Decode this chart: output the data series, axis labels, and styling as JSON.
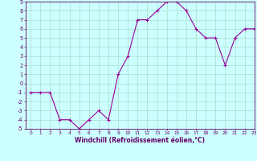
{
  "xlabel": "Windchill (Refroidissement éolien,°C)",
  "x": [
    0,
    1,
    2,
    3,
    4,
    5,
    6,
    7,
    8,
    9,
    10,
    11,
    12,
    13,
    14,
    15,
    16,
    17,
    18,
    19,
    20,
    21,
    22,
    23
  ],
  "y": [
    -1,
    -1,
    -1,
    -4,
    -4,
    -5,
    -4,
    -3,
    -4,
    1,
    3,
    7,
    7,
    8,
    9,
    9,
    8,
    6,
    5,
    5,
    2,
    5,
    6,
    6
  ],
  "line_color": "#990099",
  "marker": "+",
  "bg_color": "#ccffff",
  "grid_color": "#aaddcc",
  "ylim": [
    -5,
    9
  ],
  "xlim": [
    -0.5,
    23
  ],
  "yticks": [
    -5,
    -4,
    -3,
    -2,
    -1,
    0,
    1,
    2,
    3,
    4,
    5,
    6,
    7,
    8,
    9
  ],
  "xticks": [
    0,
    1,
    2,
    3,
    4,
    5,
    6,
    7,
    8,
    9,
    10,
    11,
    12,
    13,
    14,
    15,
    16,
    17,
    18,
    19,
    20,
    21,
    22,
    23
  ],
  "tick_color": "#660066",
  "axis_color": "#660066",
  "label_fontsize": 5.0,
  "xlabel_fontsize": 5.5
}
